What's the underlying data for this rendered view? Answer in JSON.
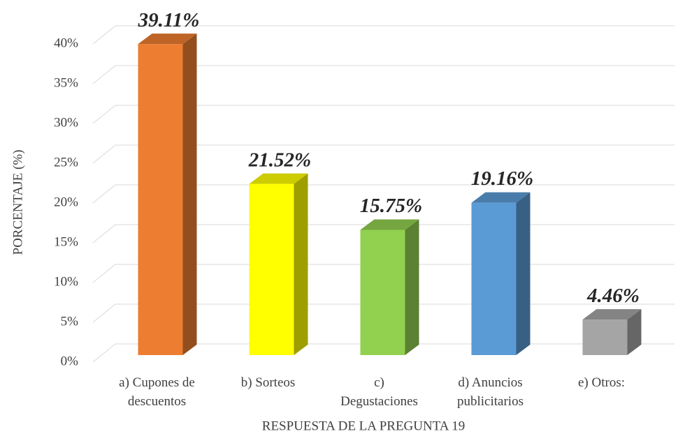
{
  "chart_data": {
    "type": "bar3d",
    "x_label": "RESPUESTA DE LA PREGUNTA 19",
    "y_label": "PORCENTAJE (%)",
    "categories": [
      "a) Cupones de\ndescuentos",
      "b) Sorteos",
      "c)\nDegustaciones",
      "d) Anuncios\npublicitarios",
      "e) Otros:"
    ],
    "values": [
      39.11,
      21.52,
      15.75,
      19.16,
      4.46
    ],
    "value_labels": [
      "39.11%",
      "21.52%",
      "15.75%",
      "19.16%",
      "4.46%"
    ],
    "colors": [
      "#ed7d31",
      "#ffff00",
      "#92d050",
      "#5b9bd5",
      "#a5a5a5"
    ],
    "ylim": [
      0,
      40
    ],
    "yticks": [
      {
        "value": 0,
        "label": "0%"
      },
      {
        "value": 5,
        "label": "5%"
      },
      {
        "value": 10,
        "label": "10%"
      },
      {
        "value": 15,
        "label": "15%"
      },
      {
        "value": 20,
        "label": "20%"
      },
      {
        "value": 25,
        "label": "25%"
      },
      {
        "value": 30,
        "label": "30%"
      },
      {
        "value": 35,
        "label": "35%"
      },
      {
        "value": 40,
        "label": "40%"
      }
    ],
    "grid": true
  }
}
